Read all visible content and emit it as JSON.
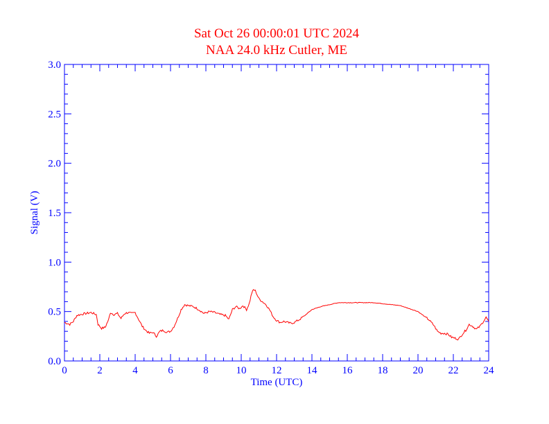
{
  "chart_data": {
    "type": "line",
    "title": "Sat Oct 26 00:00:01 UTC 2024",
    "subtitle": "NAA 24.0 kHz Cutler, ME",
    "xlabel": "Time (UTC)",
    "ylabel": "Signal (V)",
    "xlim": [
      0,
      24
    ],
    "ylim": [
      0,
      3.0
    ],
    "x_ticks": [
      "0",
      "2",
      "4",
      "6",
      "8",
      "10",
      "12",
      "14",
      "16",
      "18",
      "20",
      "22",
      "24"
    ],
    "y_ticks": [
      "0.0",
      "0.5",
      "1.0",
      "1.5",
      "2.0",
      "2.5",
      "3.0"
    ],
    "grid": false,
    "colors": {
      "title": "#ff0000",
      "axes": "#0000ff",
      "series": "#ff0000"
    },
    "series": [
      {
        "x": [
          0.0,
          0.3,
          0.5,
          0.7,
          0.9,
          1.2,
          1.5,
          1.8,
          1.9,
          2.1,
          2.3,
          2.5,
          2.6,
          2.8,
          3.0,
          3.2,
          3.4,
          3.6,
          3.8,
          4.0,
          4.2,
          4.4,
          4.6,
          4.8,
          5.0,
          5.2,
          5.4,
          5.6,
          5.8,
          6.0,
          6.2,
          6.4,
          6.6,
          6.8,
          7.0,
          7.3,
          7.6,
          7.9,
          8.2,
          8.5,
          8.8,
          9.1,
          9.3,
          9.5,
          9.7,
          9.9,
          10.1,
          10.3,
          10.45,
          10.6,
          10.7,
          10.8,
          10.9,
          11.0,
          11.2,
          11.4,
          11.6,
          11.8,
          12.0,
          12.2,
          12.4,
          12.6,
          12.8,
          13.0,
          13.3,
          13.6,
          14.0,
          14.5,
          15.0,
          15.5,
          16.0,
          16.5,
          17.0,
          17.5,
          18.0,
          18.5,
          19.0,
          19.5,
          20.0,
          20.3,
          20.6,
          20.9,
          21.1,
          21.3,
          21.5,
          21.7,
          21.9,
          22.1,
          22.3,
          22.5,
          22.7,
          22.9,
          23.1,
          23.3,
          23.5,
          23.7,
          23.85,
          24.0
        ],
        "values": [
          0.39,
          0.37,
          0.4,
          0.46,
          0.47,
          0.48,
          0.49,
          0.47,
          0.37,
          0.33,
          0.34,
          0.42,
          0.49,
          0.47,
          0.48,
          0.43,
          0.48,
          0.49,
          0.48,
          0.49,
          0.42,
          0.35,
          0.31,
          0.28,
          0.29,
          0.25,
          0.3,
          0.31,
          0.29,
          0.3,
          0.35,
          0.43,
          0.52,
          0.57,
          0.56,
          0.55,
          0.52,
          0.48,
          0.5,
          0.49,
          0.47,
          0.46,
          0.42,
          0.52,
          0.55,
          0.53,
          0.56,
          0.52,
          0.58,
          0.69,
          0.72,
          0.71,
          0.67,
          0.63,
          0.6,
          0.57,
          0.52,
          0.45,
          0.41,
          0.39,
          0.4,
          0.39,
          0.38,
          0.39,
          0.42,
          0.46,
          0.52,
          0.55,
          0.57,
          0.59,
          0.59,
          0.59,
          0.59,
          0.59,
          0.58,
          0.57,
          0.56,
          0.53,
          0.5,
          0.46,
          0.42,
          0.36,
          0.3,
          0.28,
          0.28,
          0.27,
          0.24,
          0.23,
          0.22,
          0.27,
          0.31,
          0.37,
          0.35,
          0.32,
          0.35,
          0.4,
          0.44,
          0.4
        ]
      }
    ]
  }
}
